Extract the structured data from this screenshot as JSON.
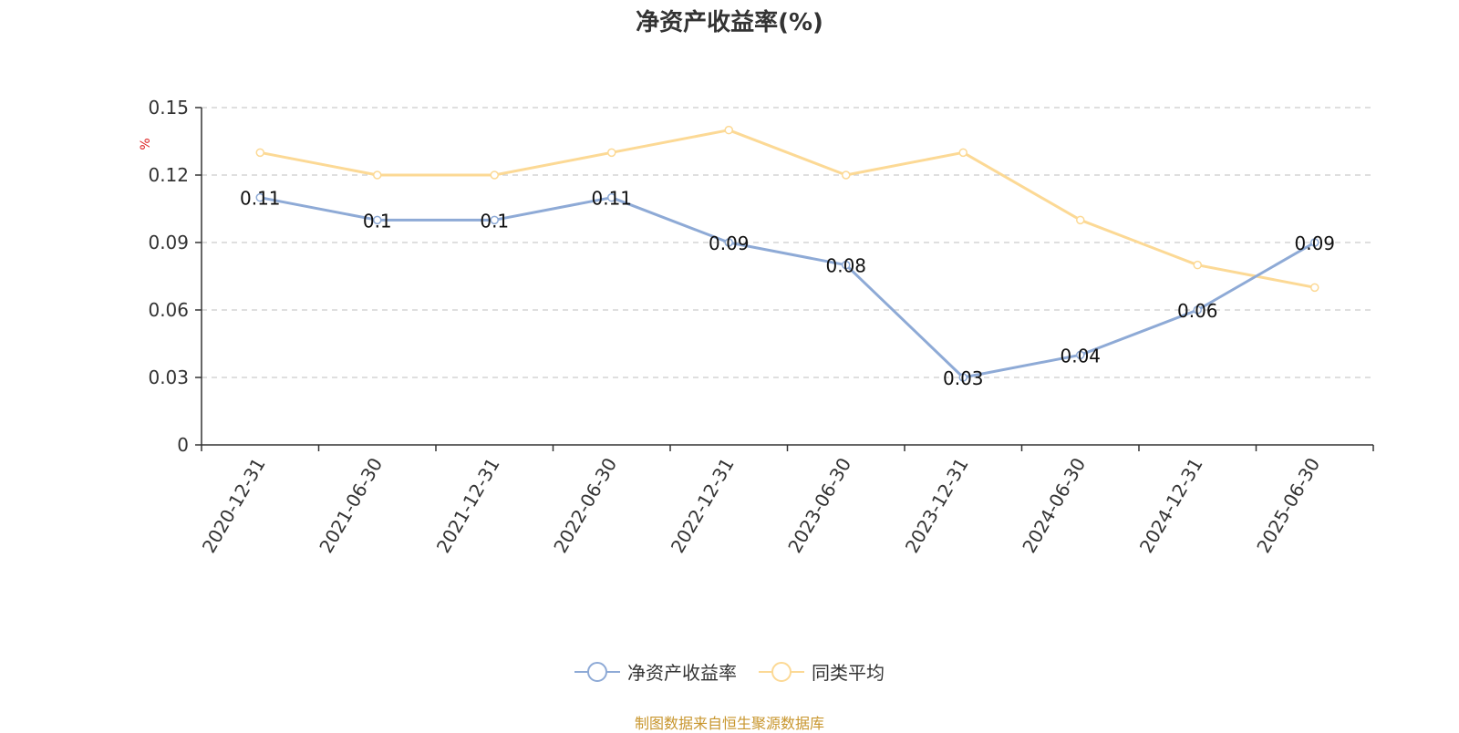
{
  "chart_data": {
    "type": "line",
    "title": "净资产收益率(%)",
    "ylabel": "%",
    "xlabel": "",
    "categories": [
      "2020-12-31",
      "2021-06-30",
      "2021-12-31",
      "2022-06-30",
      "2022-12-31",
      "2023-06-30",
      "2023-12-31",
      "2024-06-30",
      "2024-12-31",
      "2025-06-30"
    ],
    "y_ticks": [
      "0",
      "0.03",
      "0.06",
      "0.09",
      "0.12",
      "0.15"
    ],
    "ylim": [
      0,
      0.15
    ],
    "grid": true,
    "legend_position": "bottom",
    "series": [
      {
        "name": "净资产收益率",
        "color": "#8eaad6",
        "values": [
          0.11,
          0.1,
          0.1,
          0.11,
          0.09,
          0.08,
          0.03,
          0.04,
          0.06,
          0.09
        ],
        "labels": [
          "0.11",
          "0.1",
          "0.1",
          "0.11",
          "0.09",
          "0.08",
          "0.03",
          "0.04",
          "0.06",
          "0.09"
        ]
      },
      {
        "name": "同类平均",
        "color": "#fcd995",
        "values": [
          0.13,
          0.12,
          0.12,
          0.13,
          0.14,
          0.12,
          0.13,
          0.1,
          0.08,
          0.07
        ]
      }
    ]
  },
  "source_note": "制图数据来自恒生聚源数据库"
}
